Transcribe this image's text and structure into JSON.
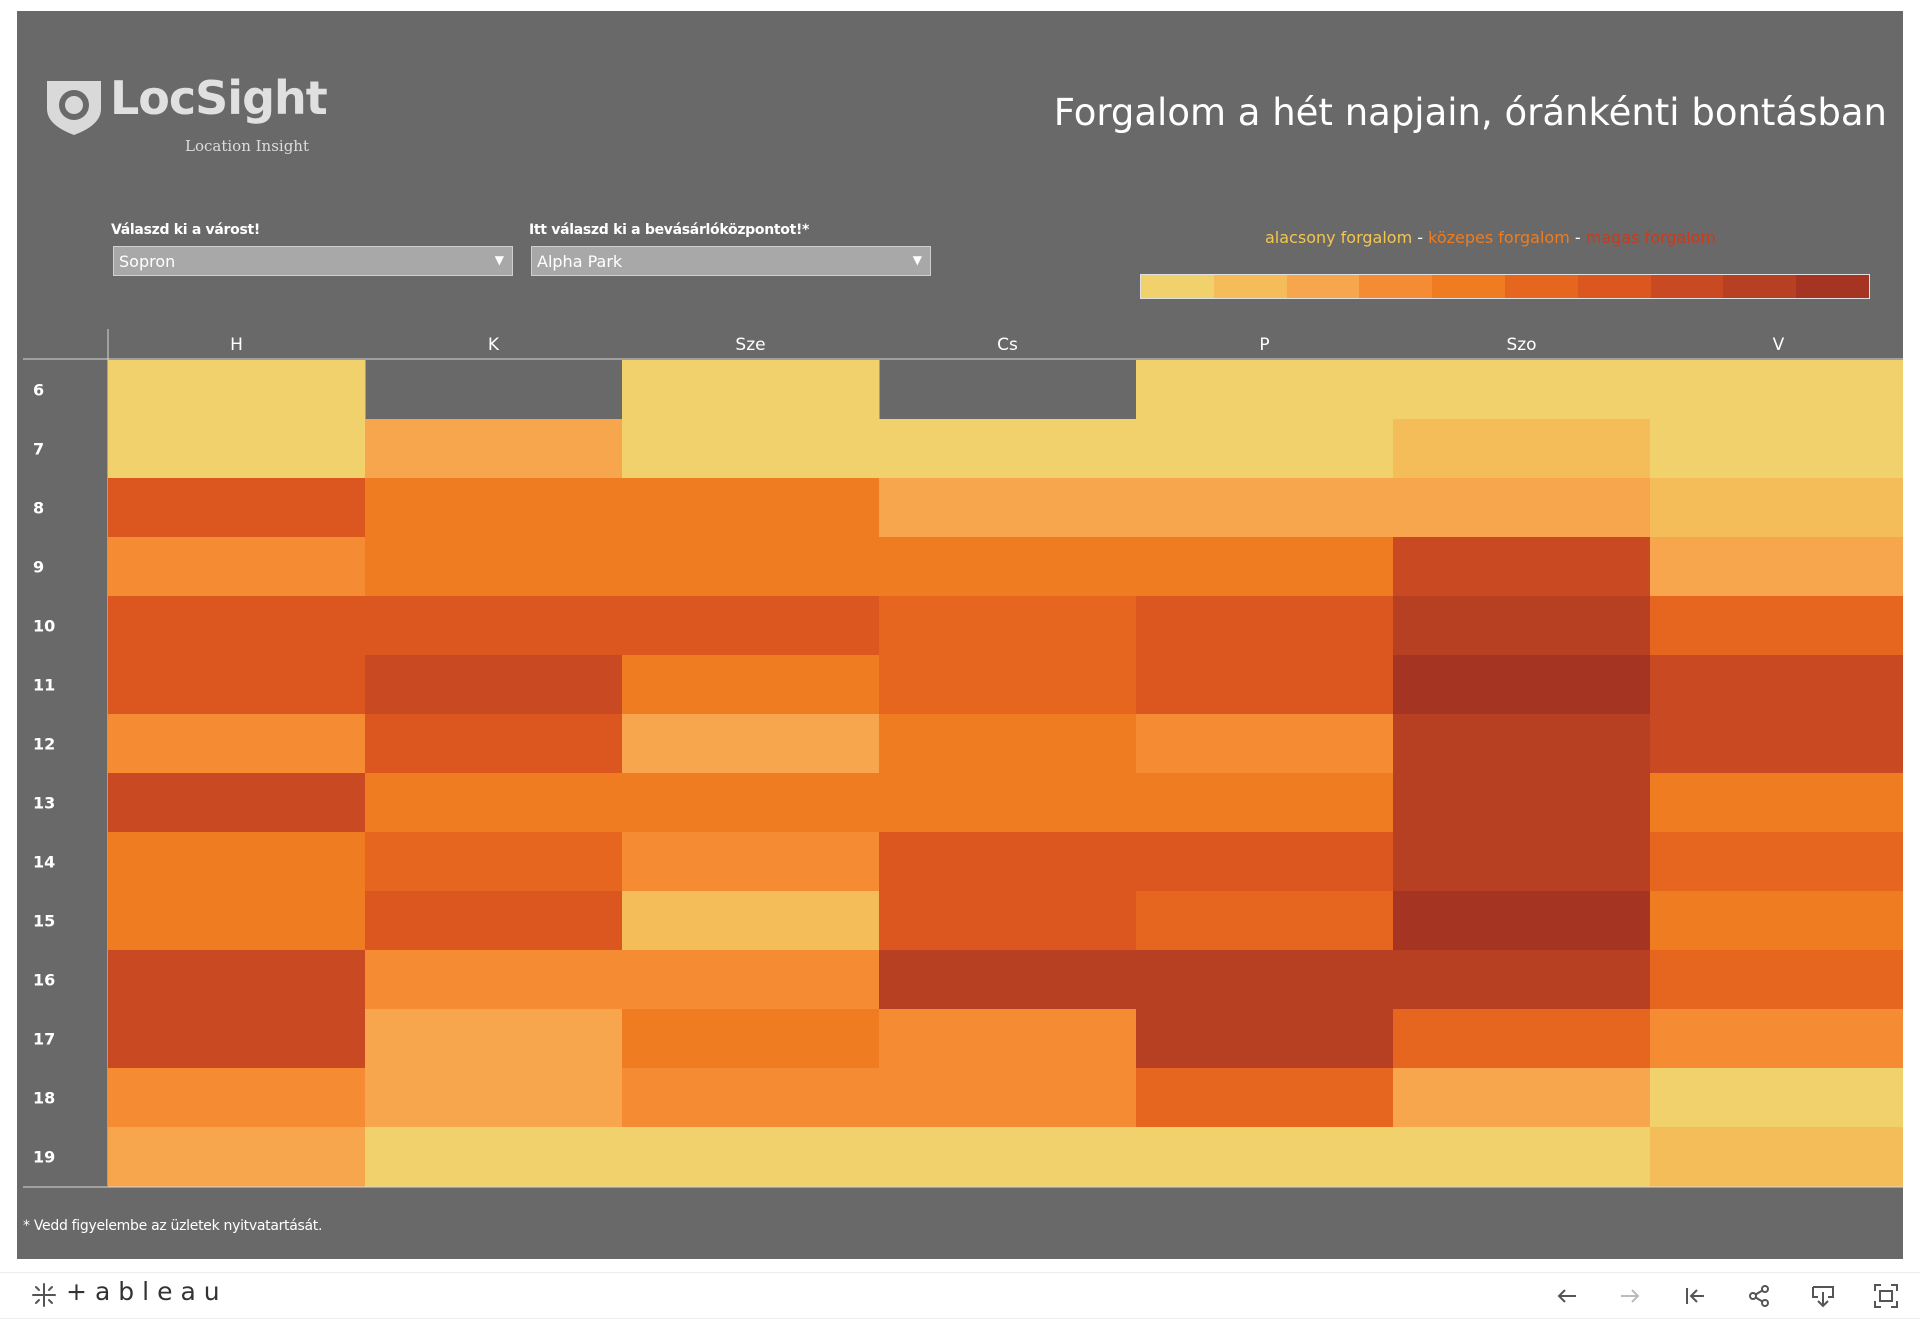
{
  "logo": {
    "name": "LocSight",
    "tagline": "Location Insight"
  },
  "title": "Forgalom a hét napjain, óránkénti bontásban",
  "filters": [
    {
      "label": "Válaszd ki a várost!",
      "value": "Sopron"
    },
    {
      "label": "Itt válaszd ki a bevásárlóközpontot!*",
      "value": "Alpha Park"
    }
  ],
  "legend": {
    "low": "alacsony forgalom",
    "sep1": " - ",
    "mid": "közepes forgalom",
    "sep2": " - ",
    "high": "magas forgalom",
    "low_color": "#f4c64f",
    "mid_color": "#f07c1e",
    "high_color": "#cc3a1a",
    "scale_colors": [
      "#f1d16b",
      "#f5bd59",
      "#f7a64d",
      "#f58c33",
      "#f07c22",
      "#e6651f",
      "#dc5720",
      "#c94a22",
      "#b73f22",
      "#a53522"
    ]
  },
  "footnote": "* Vedd figyelembe az üzletek nyitvatartását.",
  "toolbar": {
    "brand": "+ableau"
  },
  "chart_data": {
    "type": "heatmap",
    "columns": [
      "H",
      "K",
      "Sze",
      "Cs",
      "P",
      "Szo",
      "V"
    ],
    "rows": [
      "6",
      "7",
      "8",
      "9",
      "10",
      "11",
      "12",
      "13",
      "14",
      "15",
      "16",
      "17",
      "18",
      "19"
    ],
    "color_scale": {
      "min": 0,
      "max": 9,
      "low_label": "alacsony forgalom",
      "mid_label": "közepes forgalom",
      "high_label": "magas forgalom"
    },
    "values": [
      [
        0,
        null,
        0,
        null,
        0,
        0,
        0
      ],
      [
        0,
        2,
        0,
        0,
        0,
        1,
        0
      ],
      [
        6,
        4,
        4,
        2,
        2,
        2,
        1
      ],
      [
        3,
        4,
        4,
        4,
        4,
        7,
        2
      ],
      [
        6,
        6,
        6,
        5,
        6,
        8,
        5
      ],
      [
        6,
        7,
        4,
        5,
        6,
        9,
        7
      ],
      [
        3,
        6,
        2,
        4,
        3,
        8,
        7
      ],
      [
        7,
        4,
        4,
        4,
        4,
        8,
        4
      ],
      [
        4,
        5,
        3,
        6,
        6,
        8,
        5
      ],
      [
        4,
        6,
        1,
        6,
        5,
        9,
        4
      ],
      [
        7,
        3,
        3,
        8,
        8,
        8,
        5
      ],
      [
        7,
        2,
        4,
        3,
        8,
        5,
        3
      ],
      [
        3,
        2,
        3,
        3,
        5,
        2,
        0
      ],
      [
        2,
        0,
        0,
        0,
        0,
        0,
        1
      ]
    ]
  }
}
